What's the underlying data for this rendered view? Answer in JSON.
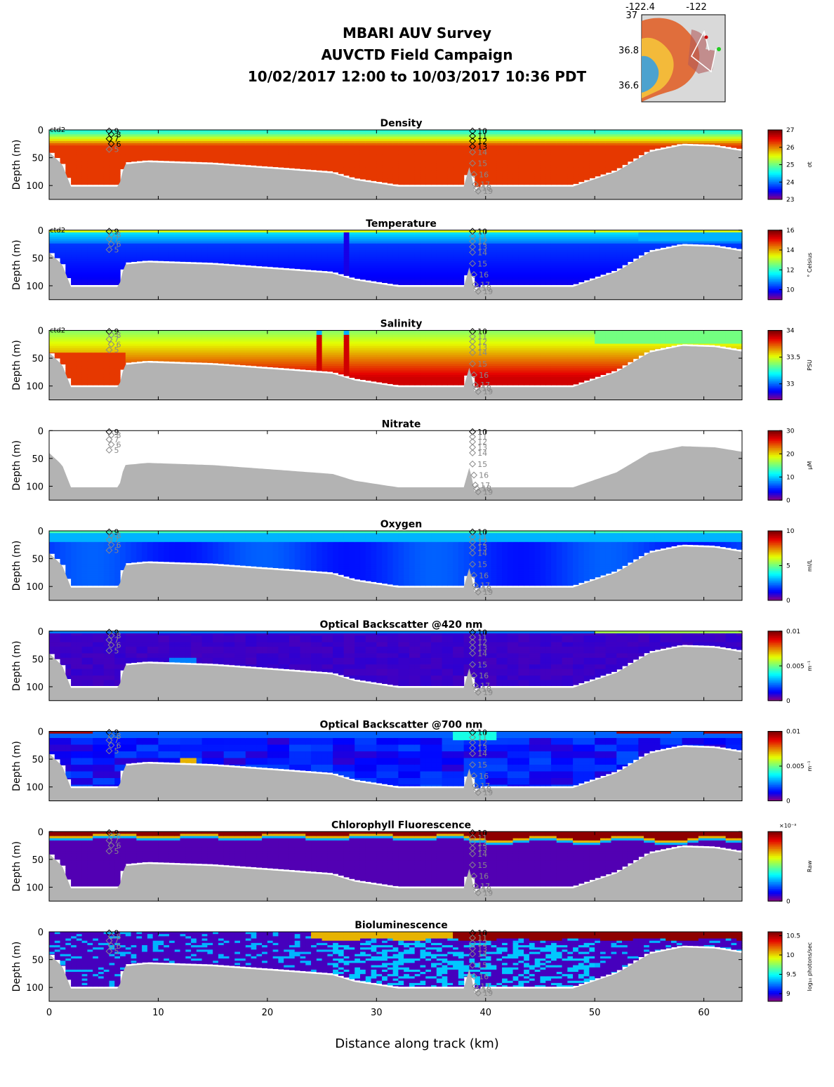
{
  "header": {
    "line1": "MBARI AUV Survey",
    "line2": "AUVCTD Field Campaign",
    "line3": "10/02/2017 12:00  to 10/03/2017 10:36 PDT"
  },
  "inset_map": {
    "lon_ticks": [
      "-122.4",
      "-122"
    ],
    "lat_ticks": [
      "37",
      "36.8",
      "36.6"
    ],
    "colors": {
      "land": "#d9d9d9",
      "track": "#ffffff",
      "start": "#22cc22",
      "end": "#cc0000"
    }
  },
  "chart_data": {
    "type": "heatmap",
    "xlabel": "Distance along track (km)",
    "ylabel": "Depth (m)",
    "xlim": [
      0,
      63.5
    ],
    "ylim": [
      125,
      0
    ],
    "xticks": [
      "0",
      "10",
      "20",
      "30",
      "40",
      "50",
      "60"
    ],
    "yticks": [
      "0",
      "50",
      "100"
    ],
    "colormap": "jet",
    "panels": [
      {
        "title": "Density",
        "cb_ticks": [
          "27",
          "26",
          "25",
          "24",
          "23"
        ],
        "cb_unit": "σt",
        "range": [
          23,
          27
        ],
        "field": "density"
      },
      {
        "title": "Temperature",
        "cb_ticks": [
          "16",
          "14",
          "12",
          "10"
        ],
        "cb_unit": "° Celsius",
        "range": [
          9,
          16
        ],
        "field": "temperature"
      },
      {
        "title": "Salinity",
        "cb_ticks": [
          "34",
          "33.5",
          "33"
        ],
        "cb_unit": "PSU",
        "range": [
          32.7,
          34
        ],
        "field": "salinity"
      },
      {
        "title": "Nitrate",
        "cb_ticks": [
          "30",
          "20",
          "10",
          "0"
        ],
        "cb_unit": "μM",
        "range": [
          0,
          30
        ],
        "field": "none"
      },
      {
        "title": "Oxygen",
        "cb_ticks": [
          "10",
          "5",
          "0"
        ],
        "cb_unit": "ml/L",
        "range": [
          0,
          10
        ],
        "field": "oxygen"
      },
      {
        "title": "Optical Backscatter @420 nm",
        "cb_ticks": [
          "0.01",
          "0.005",
          "0"
        ],
        "cb_unit": "m⁻¹",
        "range": [
          0,
          0.01
        ],
        "field": "bb420"
      },
      {
        "title": "Optical Backscatter @700 nm",
        "cb_ticks": [
          "0.01",
          "0.005",
          "0"
        ],
        "cb_unit": "m⁻¹",
        "range": [
          0,
          0.01
        ],
        "field": "bb700"
      },
      {
        "title": "Chlorophyll Fluorescence",
        "cb_ticks": [
          "1",
          "0.5",
          "0"
        ],
        "cb_unit": "Raw",
        "cb_exponent": "×10⁻³",
        "range": [
          0,
          0.001
        ],
        "field": "chl"
      },
      {
        "title": "Bioluminescence",
        "cb_ticks": [
          "10.5",
          "10",
          "9.5",
          "9"
        ],
        "cb_unit": "log₁₀ photons/sec",
        "range": [
          8.8,
          10.6
        ],
        "field": "biolum"
      }
    ],
    "profile_label": "ctd2",
    "casts": [
      {
        "x": 5.5,
        "labels": [
          "9",
          "8",
          "7",
          "6",
          "5"
        ],
        "depths": [
          2,
          8,
          16,
          25,
          35
        ]
      },
      {
        "x": 38.8,
        "labels": [
          "10",
          "11",
          "12",
          "13",
          "14",
          "15",
          "16",
          "17",
          "18",
          "19"
        ],
        "depths": [
          2,
          11,
          20,
          30,
          40,
          60,
          80,
          98,
          104,
          110
        ]
      }
    ]
  }
}
